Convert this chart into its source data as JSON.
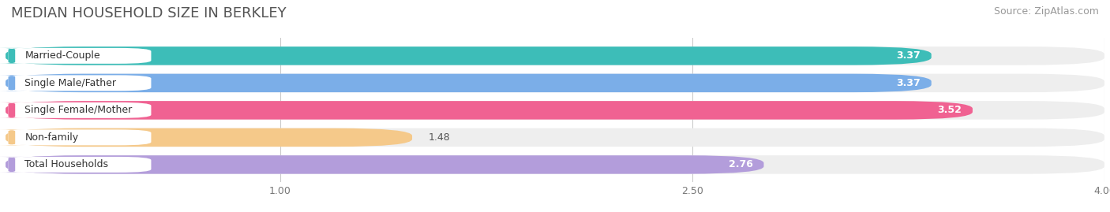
{
  "title": "MEDIAN HOUSEHOLD SIZE IN BERKLEY",
  "source": "Source: ZipAtlas.com",
  "categories": [
    "Married-Couple",
    "Single Male/Father",
    "Single Female/Mother",
    "Non-family",
    "Total Households"
  ],
  "values": [
    3.37,
    3.37,
    3.52,
    1.48,
    2.76
  ],
  "bar_colors": [
    "#3dbdb8",
    "#7baee8",
    "#f06292",
    "#f5c98a",
    "#b39ddb"
  ],
  "xlim": [
    0,
    4.0
  ],
  "xticks": [
    1.0,
    2.5,
    4.0
  ],
  "background_color": "#ffffff",
  "bar_background_color": "#eeeeee",
  "title_fontsize": 13,
  "source_fontsize": 9,
  "label_fontsize": 9,
  "value_fontsize": 9,
  "tick_fontsize": 9
}
